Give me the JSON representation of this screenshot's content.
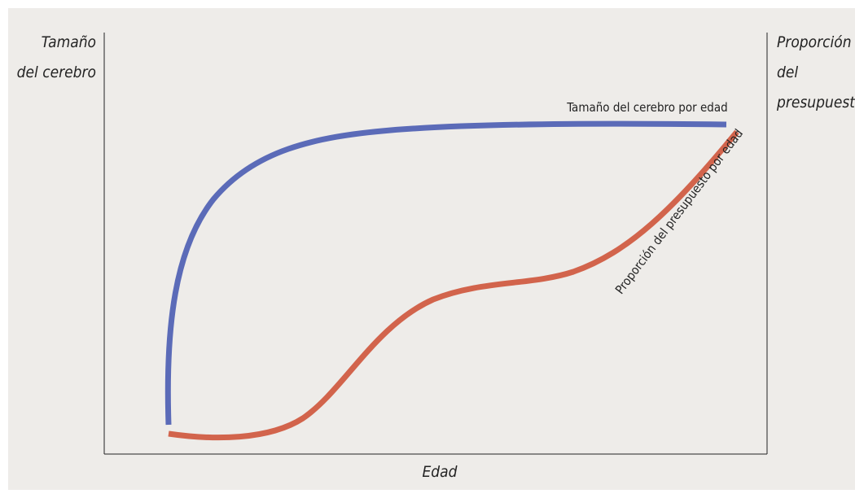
{
  "left_axis_label": [
    "Tamaño",
    "del cerebro"
  ],
  "right_axis_label": [
    "Proporción",
    "del",
    "presupuesto"
  ],
  "x_axis_label": "Edad",
  "curves": [
    {
      "label": "Tamaño del cerebro por edad"
    },
    {
      "label": "Proporción del presupuesto por edad"
    }
  ]
}
